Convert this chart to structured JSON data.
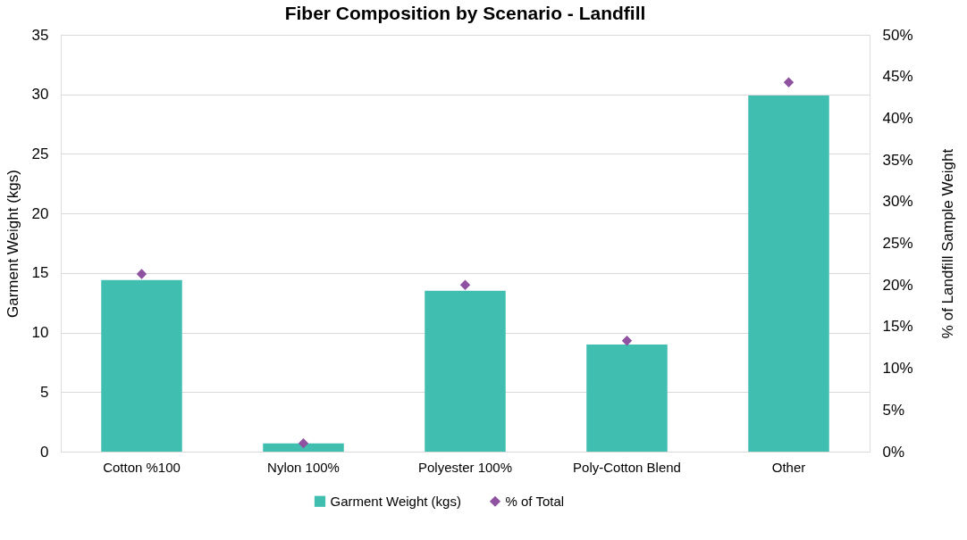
{
  "chart_data": {
    "type": "bar",
    "title": "Fiber Composition by Scenario - Landfill",
    "categories": [
      "Cotton %100",
      "Nylon 100%",
      "Polyester 100%",
      "Poly-Cotton Blend",
      "Other"
    ],
    "series": [
      {
        "name": "Garment Weight (kgs)",
        "color": "#40bfb0",
        "values": [
          14.4,
          0.7,
          13.5,
          9.0,
          29.9
        ]
      },
      {
        "name": "% of Total",
        "type": "scatter",
        "axis": "y2",
        "marker": "diamond",
        "color": "#8e52a1",
        "values": [
          21.3,
          1.0,
          20.0,
          13.3,
          44.3
        ]
      }
    ],
    "ylabel": "Garment Weight (kgs)",
    "y2label": "% of Landfill Sample Weight",
    "ylim": [
      0,
      35
    ],
    "yticks": [
      0,
      5,
      10,
      15,
      20,
      25,
      30,
      35
    ],
    "y2lim": [
      0,
      50
    ],
    "y2ticks": [
      {
        "value": 0,
        "label": "0%"
      },
      {
        "value": 5,
        "label": "5%"
      },
      {
        "value": 10,
        "label": "10%"
      },
      {
        "value": 15,
        "label": "15%"
      },
      {
        "value": 20,
        "label": "20%"
      },
      {
        "value": 25,
        "label": "25%"
      },
      {
        "value": 30,
        "label": "30%"
      },
      {
        "value": 35,
        "label": "35%"
      },
      {
        "value": 40,
        "label": "40%"
      },
      {
        "value": 45,
        "label": "45%"
      },
      {
        "value": 50,
        "label": "50%"
      }
    ],
    "grid": "y",
    "legend": "bottom"
  }
}
